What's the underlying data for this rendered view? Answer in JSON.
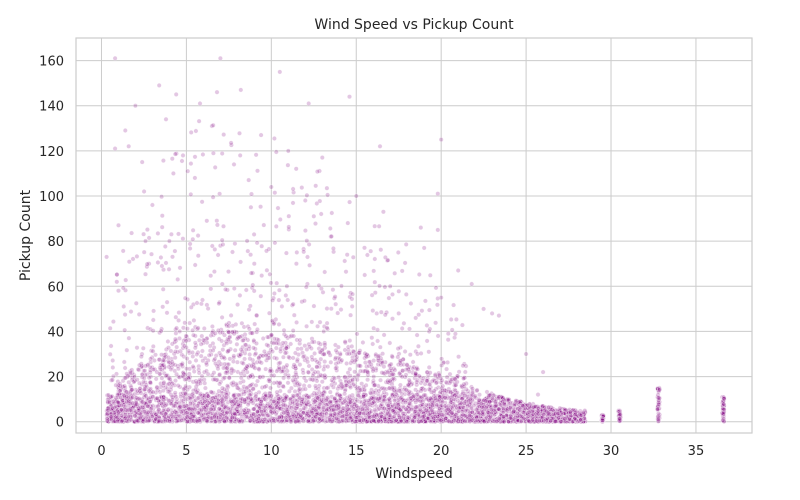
{
  "chart_data": {
    "type": "scatter",
    "title": "Wind Speed vs Pickup Count",
    "xlabel": "Windspeed",
    "ylabel": "Pickup Count",
    "xlim": [
      -1.5,
      38.3
    ],
    "ylim": [
      -5,
      170
    ],
    "xticks": [
      0,
      5,
      10,
      15,
      20,
      25,
      30,
      35
    ],
    "yticks": [
      0,
      20,
      40,
      60,
      80,
      100,
      120,
      140,
      160
    ],
    "grid": true,
    "legend": "none",
    "marker_color": "#800080",
    "marker_alpha": 0.22,
    "dense_band": {
      "note_free_description": "dense cloud of points",
      "x_range": [
        0.3,
        28.5
      ],
      "y_max_profile": [
        {
          "x": 0.5,
          "y": 12
        },
        {
          "x": 1.5,
          "y": 20
        },
        {
          "x": 3,
          "y": 30
        },
        {
          "x": 5,
          "y": 38
        },
        {
          "x": 8,
          "y": 40
        },
        {
          "x": 11,
          "y": 37
        },
        {
          "x": 14,
          "y": 33
        },
        {
          "x": 17,
          "y": 27
        },
        {
          "x": 20,
          "y": 20
        },
        {
          "x": 22,
          "y": 15
        },
        {
          "x": 24,
          "y": 10
        },
        {
          "x": 26,
          "y": 7
        },
        {
          "x": 28,
          "y": 5
        }
      ]
    },
    "columns": [
      {
        "x": 29.5,
        "y_max": 3
      },
      {
        "x": 30.5,
        "y_max": 5
      },
      {
        "x": 32.8,
        "y_max": 16
      },
      {
        "x": 36.6,
        "y_max": 12
      }
    ],
    "outliers": [
      {
        "x": 0.8,
        "y": 161
      },
      {
        "x": 7.0,
        "y": 161
      },
      {
        "x": 10.5,
        "y": 155
      },
      {
        "x": 3.4,
        "y": 149
      },
      {
        "x": 4.4,
        "y": 145
      },
      {
        "x": 8.2,
        "y": 147
      },
      {
        "x": 14.6,
        "y": 144
      },
      {
        "x": 2.0,
        "y": 140
      },
      {
        "x": 6.8,
        "y": 146
      },
      {
        "x": 5.8,
        "y": 141
      },
      {
        "x": 12.2,
        "y": 141
      },
      {
        "x": 1.4,
        "y": 129
      },
      {
        "x": 1.6,
        "y": 122
      },
      {
        "x": 0.8,
        "y": 121
      },
      {
        "x": 3.8,
        "y": 134
      },
      {
        "x": 6.5,
        "y": 131
      },
      {
        "x": 9.4,
        "y": 127
      },
      {
        "x": 16.4,
        "y": 122
      },
      {
        "x": 20.0,
        "y": 125
      },
      {
        "x": 11.0,
        "y": 120
      },
      {
        "x": 13.0,
        "y": 117
      },
      {
        "x": 2.4,
        "y": 115
      },
      {
        "x": 4.8,
        "y": 118
      },
      {
        "x": 7.8,
        "y": 114
      },
      {
        "x": 5.5,
        "y": 108
      },
      {
        "x": 10.0,
        "y": 104
      },
      {
        "x": 15.0,
        "y": 100
      },
      {
        "x": 19.8,
        "y": 101
      },
      {
        "x": 3.0,
        "y": 96
      },
      {
        "x": 8.8,
        "y": 95
      },
      {
        "x": 16.6,
        "y": 93
      },
      {
        "x": 12.5,
        "y": 91
      },
      {
        "x": 18.8,
        "y": 86
      },
      {
        "x": 19.8,
        "y": 85
      },
      {
        "x": 14.5,
        "y": 88
      },
      {
        "x": 6.2,
        "y": 89
      },
      {
        "x": 19.0,
        "y": 77
      },
      {
        "x": 21.0,
        "y": 67
      },
      {
        "x": 21.8,
        "y": 61
      },
      {
        "x": 1.0,
        "y": 87
      },
      {
        "x": 0.3,
        "y": 73
      },
      {
        "x": 0.9,
        "y": 62
      },
      {
        "x": 20.0,
        "y": 55
      },
      {
        "x": 22.5,
        "y": 50
      },
      {
        "x": 23.0,
        "y": 48
      },
      {
        "x": 23.4,
        "y": 47
      },
      {
        "x": 18.5,
        "y": 46
      },
      {
        "x": 17.5,
        "y": 48
      },
      {
        "x": 25.0,
        "y": 30
      },
      {
        "x": 26.0,
        "y": 22
      },
      {
        "x": 25.7,
        "y": 12
      },
      {
        "x": 9.0,
        "y": 70
      },
      {
        "x": 11.5,
        "y": 75
      },
      {
        "x": 13.5,
        "y": 82
      },
      {
        "x": 4.0,
        "y": 80
      },
      {
        "x": 7.0,
        "y": 78
      },
      {
        "x": 15.5,
        "y": 65
      },
      {
        "x": 17.0,
        "y": 60
      },
      {
        "x": 2.8,
        "y": 70
      },
      {
        "x": 12.0,
        "y": 98
      }
    ]
  }
}
